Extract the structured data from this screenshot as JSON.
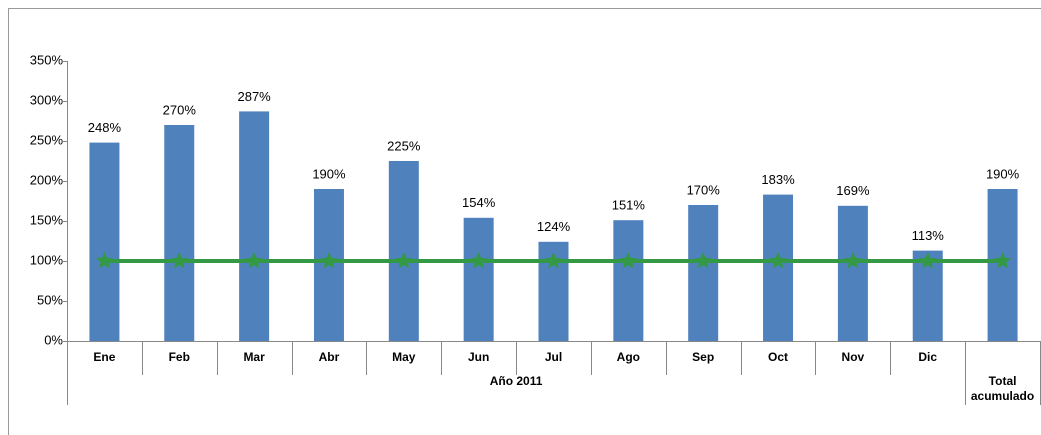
{
  "chart_data": {
    "type": "bar",
    "categories": [
      "Ene",
      "Feb",
      "Mar",
      "Abr",
      "May",
      "Jun",
      "Jul",
      "Ago",
      "Sep",
      "Oct",
      "Nov",
      "Dic",
      "Total acumulado"
    ],
    "group_label": "Año 2011",
    "series": [
      {
        "type": "bar",
        "color": "#4f81bd",
        "values": [
          248,
          270,
          287,
          190,
          225,
          154,
          124,
          151,
          170,
          183,
          169,
          113,
          190
        ],
        "value_labels": [
          "248%",
          "270%",
          "287%",
          "190%",
          "225%",
          "154%",
          "124%",
          "151%",
          "170%",
          "183%",
          "169%",
          "113%",
          "190%"
        ]
      },
      {
        "type": "line",
        "color": "#339944",
        "marker": "star",
        "values": [
          100,
          100,
          100,
          100,
          100,
          100,
          100,
          100,
          100,
          100,
          100,
          100,
          100
        ]
      }
    ],
    "ylim": [
      0,
      350
    ],
    "yticks": [
      {
        "value": 0,
        "label": "0%"
      },
      {
        "value": 50,
        "label": "50%"
      },
      {
        "value": 100,
        "label": "100%"
      },
      {
        "value": 150,
        "label": "150%"
      },
      {
        "value": 200,
        "label": "200%"
      },
      {
        "value": 250,
        "label": "250%"
      },
      {
        "value": 300,
        "label": "300%"
      },
      {
        "value": 350,
        "label": "350%"
      }
    ],
    "grid": false
  }
}
